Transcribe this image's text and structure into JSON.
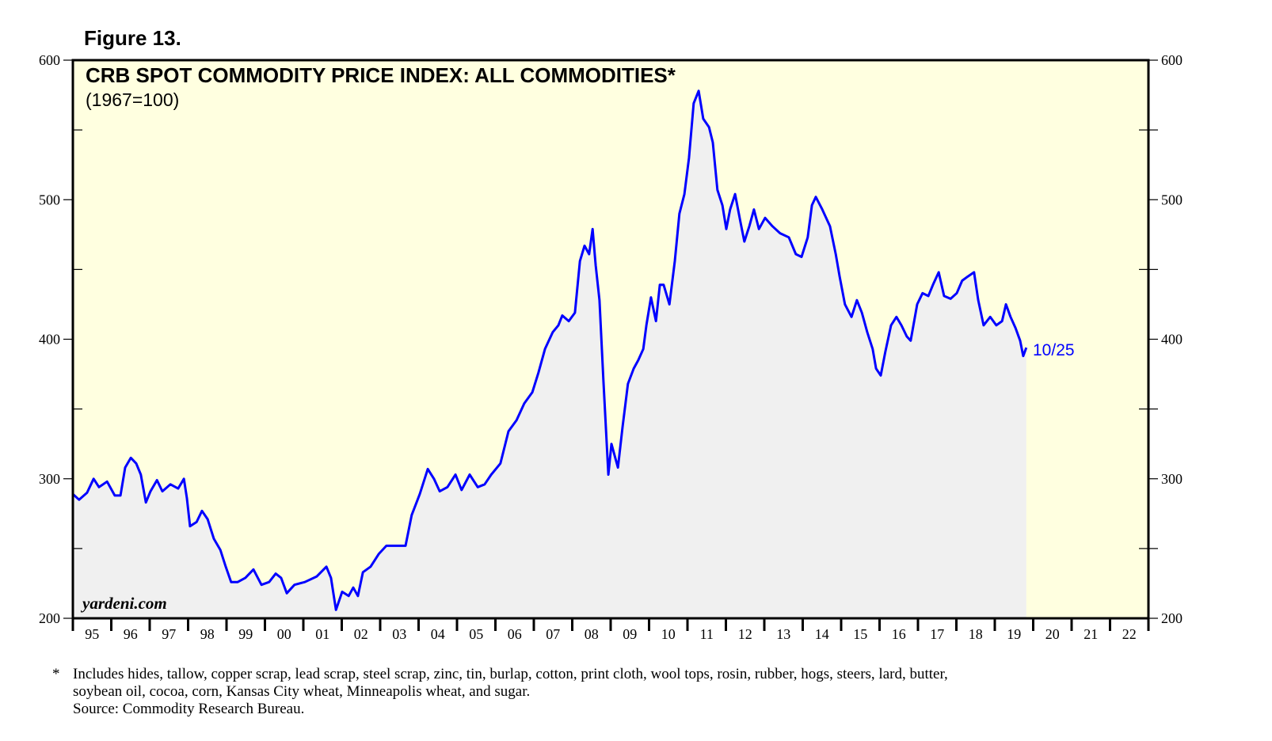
{
  "figure_label": "Figure 13.",
  "chart_data": {
    "type": "area",
    "title": "CRB SPOT COMMODITY PRICE INDEX: ALL COMMODITIES*",
    "subtitle": "(1967=100)",
    "ylim": [
      200,
      600
    ],
    "yticks": [
      200,
      300,
      400,
      500,
      600
    ],
    "xlim": [
      1995,
      2023
    ],
    "xtick_labels": [
      "95",
      "96",
      "97",
      "98",
      "99",
      "00",
      "01",
      "02",
      "03",
      "04",
      "05",
      "06",
      "07",
      "08",
      "09",
      "10",
      "11",
      "12",
      "13",
      "14",
      "15",
      "16",
      "17",
      "18",
      "19",
      "20",
      "21",
      "22"
    ],
    "grid": false,
    "y_axis_both_sides": true,
    "end_label": "10/25",
    "colors": {
      "line": "#0000ff",
      "fill": "#f0f0f0",
      "background": "#ffffe0"
    },
    "series": [
      {
        "x": [
          1995.0,
          1995.16,
          1995.37,
          1995.54,
          1995.68,
          1995.89,
          1996.09,
          1996.24,
          1996.36,
          1996.51,
          1996.65,
          1996.77,
          1996.9,
          1997.02,
          1997.19,
          1997.33,
          1997.54,
          1997.74,
          1997.89,
          1997.97,
          1998.05,
          1998.22,
          1998.36,
          1998.51,
          1998.67,
          1998.84,
          1998.98,
          1999.12,
          1999.29,
          1999.49,
          1999.7,
          1999.91,
          2000.11,
          2000.28,
          2000.42,
          2000.57,
          2000.77,
          2001.04,
          2001.35,
          2001.6,
          2001.72,
          2001.85,
          2002.01,
          2002.18,
          2002.3,
          2002.42,
          2002.55,
          2002.75,
          2002.96,
          2003.16,
          2003.41,
          2003.66,
          2003.82,
          2004.03,
          2004.24,
          2004.4,
          2004.55,
          2004.75,
          2004.96,
          2005.12,
          2005.33,
          2005.54,
          2005.72,
          2005.89,
          2006.13,
          2006.34,
          2006.55,
          2006.75,
          2006.96,
          2007.12,
          2007.29,
          2007.49,
          2007.64,
          2007.74,
          2007.91,
          2008.07,
          2008.2,
          2008.32,
          2008.44,
          2008.53,
          2008.61,
          2008.71,
          2008.81,
          2008.94,
          2009.02,
          2009.19,
          2009.31,
          2009.45,
          2009.6,
          2009.72,
          2009.85,
          2009.93,
          2010.05,
          2010.18,
          2010.28,
          2010.38,
          2010.53,
          2010.67,
          2010.79,
          2010.92,
          2011.04,
          2011.16,
          2011.29,
          2011.41,
          2011.56,
          2011.66,
          2011.78,
          2011.91,
          2012.01,
          2012.11,
          2012.24,
          2012.38,
          2012.48,
          2012.61,
          2012.73,
          2012.86,
          2013.02,
          2013.21,
          2013.41,
          2013.64,
          2013.82,
          2013.97,
          2014.13,
          2014.24,
          2014.34,
          2014.51,
          2014.71,
          2014.86,
          2014.96,
          2015.1,
          2015.27,
          2015.41,
          2015.54,
          2015.68,
          2015.82,
          2015.91,
          2016.03,
          2016.15,
          2016.3,
          2016.44,
          2016.57,
          2016.71,
          2016.81,
          2016.98,
          2017.12,
          2017.27,
          2017.39,
          2017.54,
          2017.68,
          2017.85,
          2018.01,
          2018.15,
          2018.3,
          2018.46,
          2018.57,
          2018.71,
          2018.88,
          2019.04,
          2019.19,
          2019.29,
          2019.41,
          2019.54,
          2019.66,
          2019.74,
          2019.82
        ],
        "values": [
          289,
          285,
          290,
          300,
          294,
          298,
          288,
          288,
          308,
          315,
          311,
          303,
          283,
          291,
          299,
          291,
          296,
          293,
          300,
          286,
          266,
          269,
          277,
          271,
          257,
          249,
          237,
          226,
          226,
          229,
          235,
          224,
          226,
          232,
          229,
          218,
          224,
          226,
          230,
          237,
          229,
          206,
          219,
          216,
          222,
          216,
          233,
          237,
          246,
          252,
          252,
          252,
          274,
          289,
          307,
          300,
          291,
          294,
          303,
          292,
          303,
          294,
          296,
          303,
          311,
          334,
          342,
          354,
          362,
          376,
          393,
          405,
          410,
          417,
          413,
          419,
          456,
          467,
          461,
          479,
          453,
          428,
          371,
          303,
          325,
          308,
          337,
          368,
          379,
          385,
          393,
          410,
          430,
          413,
          439,
          439,
          425,
          456,
          490,
          504,
          530,
          569,
          578,
          558,
          552,
          541,
          507,
          496,
          479,
          493,
          504,
          484,
          470,
          481,
          493,
          479,
          487,
          481,
          476,
          473,
          461,
          459,
          473,
          496,
          502,
          493,
          481,
          461,
          445,
          425,
          416,
          428,
          419,
          405,
          393,
          379,
          374,
          391,
          410,
          416,
          410,
          402,
          399,
          425,
          433,
          431,
          439,
          448,
          431,
          429,
          433,
          442,
          445,
          448,
          428,
          410,
          416,
          410,
          413,
          425,
          416,
          408,
          399,
          388,
          394
        ]
      }
    ]
  },
  "footnote": {
    "marker": "*",
    "line1": "Includes hides, tallow, copper scrap, lead scrap, steel scrap, zinc, tin, burlap, cotton, print cloth, wool tops, rosin, rubber, hogs, steers, lard, butter,",
    "line2": "soybean oil, cocoa, corn, Kansas City wheat, Minneapolis wheat, and sugar.",
    "source": "Source: Commodity Research Bureau."
  },
  "watermark": "yardeni.com"
}
